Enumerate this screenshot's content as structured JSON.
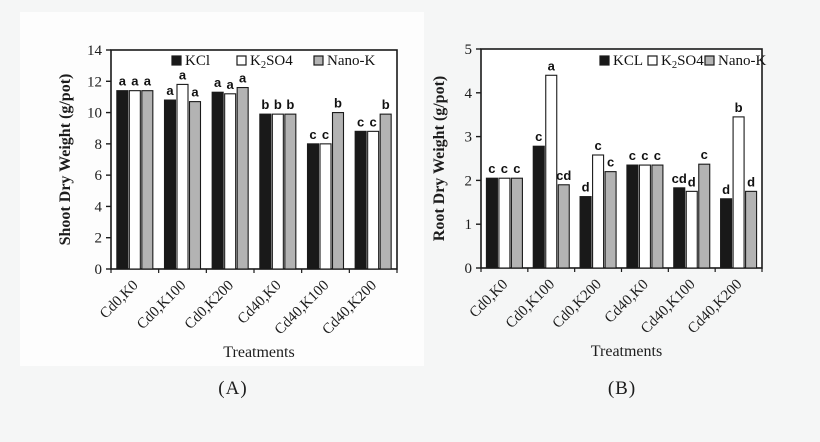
{
  "figure": {
    "panel_a_caption": "(A)",
    "panel_b_caption": "(B)"
  },
  "colors": {
    "bar_black": "#191919",
    "bar_white": "#ffffff",
    "bar_gray": "#b3b3b3",
    "axis": "#1a1a1a",
    "text": "#1c1c1c",
    "page_background": "#f5f6f6",
    "panel_background": "#fdfdfd",
    "plot_background": "#ffffff"
  },
  "chart_data": [
    {
      "type": "bar",
      "panel_label": "(A)",
      "title": "",
      "ylabel": "Shoot Dry Weight (g/pot)",
      "xlabel": "Treatments",
      "ylim": [
        0,
        14
      ],
      "ytick_step": 2,
      "grid": false,
      "legend_position": "top-inside-spread",
      "categories": [
        "Cd0,K0",
        "Cd0,K100",
        "Cd0,K200",
        "Cd40,K0",
        "Cd40,K100",
        "Cd40,K200"
      ],
      "series": [
        {
          "name": "KCl",
          "label_parts": [
            {
              "t": "KCl"
            }
          ],
          "fill": "#191919",
          "values": [
            11.4,
            10.8,
            11.3,
            9.9,
            8.0,
            8.8
          ],
          "sig_labels": [
            "a",
            "a",
            "a",
            "b",
            "c",
            "c"
          ]
        },
        {
          "name": "K2SO4",
          "label_parts": [
            {
              "t": "K"
            },
            {
              "t": "2",
              "sub": true
            },
            {
              "t": "SO4"
            }
          ],
          "fill": "#ffffff",
          "values": [
            11.4,
            11.8,
            11.2,
            9.9,
            8.0,
            8.8
          ],
          "sig_labels": [
            "a",
            "a",
            "a",
            "b",
            "c",
            "c"
          ]
        },
        {
          "name": "Nano-K",
          "label_parts": [
            {
              "t": "Nano-K"
            }
          ],
          "fill": "#b3b3b3",
          "values": [
            11.4,
            10.7,
            11.6,
            9.9,
            10.0,
            9.9
          ],
          "sig_labels": [
            "a",
            "a",
            "a",
            "b",
            "b",
            "b"
          ]
        }
      ]
    },
    {
      "type": "bar",
      "panel_label": "(B)",
      "title": "",
      "ylabel": "Root Dry Weight (g/pot)",
      "xlabel": "Treatments",
      "ylim": [
        0,
        5
      ],
      "ytick_step": 1,
      "grid": false,
      "legend_position": "top-right-inside",
      "categories": [
        "Cd0,K0",
        "Cd0,K100",
        "Cd0,K200",
        "Cd40,K0",
        "Cd40,K100",
        "Cd40,K200"
      ],
      "series": [
        {
          "name": "KCL",
          "label_parts": [
            {
              "t": "KCL"
            }
          ],
          "fill": "#191919",
          "values": [
            2.05,
            2.78,
            1.63,
            2.35,
            1.83,
            1.58
          ],
          "sig_labels": [
            "c",
            "c",
            "d",
            "c",
            "cd",
            "d"
          ]
        },
        {
          "name": "K2SO4",
          "label_parts": [
            {
              "t": "K"
            },
            {
              "t": "2",
              "sub": true
            },
            {
              "t": "SO4"
            }
          ],
          "fill": "#ffffff",
          "values": [
            2.05,
            4.4,
            2.58,
            2.35,
            1.75,
            3.45
          ],
          "sig_labels": [
            "c",
            "a",
            "c",
            "c",
            "d",
            "b"
          ]
        },
        {
          "name": "Nano-K",
          "label_parts": [
            {
              "t": "Nano-K"
            }
          ],
          "fill": "#b3b3b3",
          "values": [
            2.05,
            1.9,
            2.2,
            2.35,
            2.37,
            1.75
          ],
          "sig_labels": [
            "c",
            "cd",
            "c",
            "c",
            "c",
            "d"
          ]
        }
      ]
    }
  ]
}
